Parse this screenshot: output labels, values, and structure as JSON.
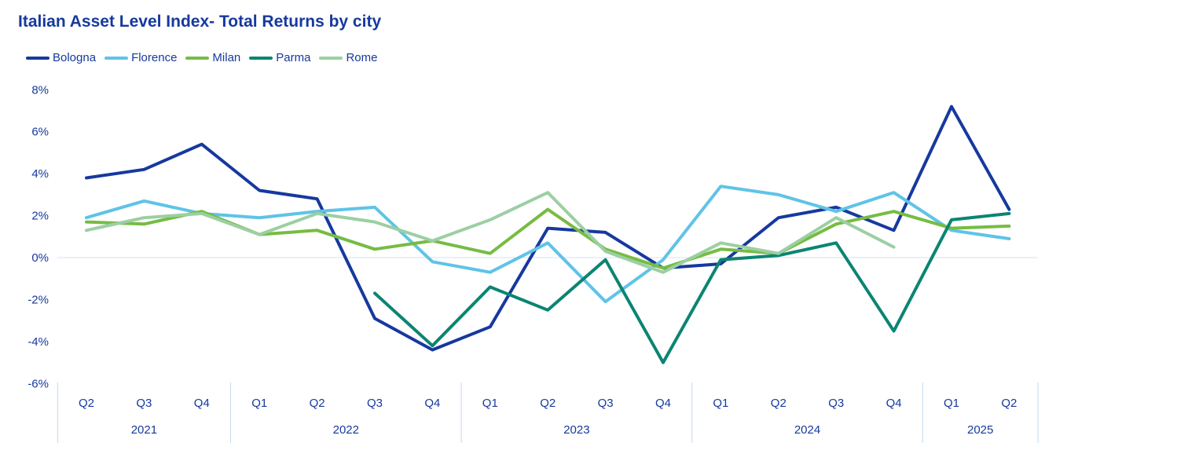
{
  "title": "Italian Asset Level Index- Total Returns by city",
  "colors": {
    "title_text": "#16399E",
    "axis_text": "#16399E",
    "zero_gridline": "#D9E6F6",
    "year_divider": "#C3D8F0",
    "background": "#FFFFFF"
  },
  "chart_data": {
    "type": "line",
    "title": "Italian Asset Level Index- Total Returns by city",
    "y_unit": "%",
    "ylim": [
      -6,
      8
    ],
    "y_ticks": [
      "8%",
      "6%",
      "4%",
      "2%",
      "0%",
      "-2%",
      "-4%",
      "-6%"
    ],
    "grid": "zero-line-only",
    "legend_position": "top-left",
    "x_groups": [
      {
        "year": "2021",
        "quarters": [
          "Q2",
          "Q3",
          "Q4"
        ]
      },
      {
        "year": "2022",
        "quarters": [
          "Q1",
          "Q2",
          "Q3",
          "Q4"
        ]
      },
      {
        "year": "2023",
        "quarters": [
          "Q1",
          "Q2",
          "Q3",
          "Q4"
        ]
      },
      {
        "year": "2024",
        "quarters": [
          "Q1",
          "Q2",
          "Q3",
          "Q4"
        ]
      },
      {
        "year": "2025",
        "quarters": [
          "Q1",
          "Q2"
        ]
      }
    ],
    "series": [
      {
        "name": "Bologna",
        "color": "#16399E",
        "values": [
          3.8,
          4.2,
          5.4,
          3.2,
          2.8,
          -2.9,
          -4.4,
          -3.3,
          1.4,
          1.2,
          -0.5,
          -0.3,
          1.9,
          2.4,
          1.3,
          7.2,
          2.3
        ]
      },
      {
        "name": "Florence",
        "color": "#5FC3E7",
        "values": [
          1.9,
          2.7,
          2.1,
          1.9,
          2.2,
          2.4,
          -0.2,
          -0.7,
          0.7,
          -2.1,
          -0.1,
          3.4,
          3.0,
          2.2,
          3.1,
          1.3,
          0.9
        ]
      },
      {
        "name": "Milan",
        "color": "#76BC43",
        "values": [
          1.7,
          1.6,
          2.2,
          1.1,
          1.3,
          0.4,
          0.8,
          0.2,
          2.3,
          0.4,
          -0.5,
          0.4,
          0.2,
          1.6,
          2.2,
          1.4,
          1.5
        ]
      },
      {
        "name": "Parma",
        "color": "#0B8572",
        "values": [
          null,
          null,
          null,
          null,
          null,
          -1.7,
          -4.2,
          -1.4,
          -2.5,
          -0.1,
          -5.0,
          -0.1,
          0.1,
          0.7,
          -3.5,
          1.8,
          2.1
        ]
      },
      {
        "name": "Rome",
        "color": "#9CCFA3",
        "values": [
          1.3,
          1.9,
          2.1,
          1.1,
          2.1,
          1.7,
          0.8,
          1.8,
          3.1,
          0.3,
          -0.7,
          0.7,
          0.2,
          1.9,
          0.5,
          null,
          null
        ]
      }
    ]
  }
}
